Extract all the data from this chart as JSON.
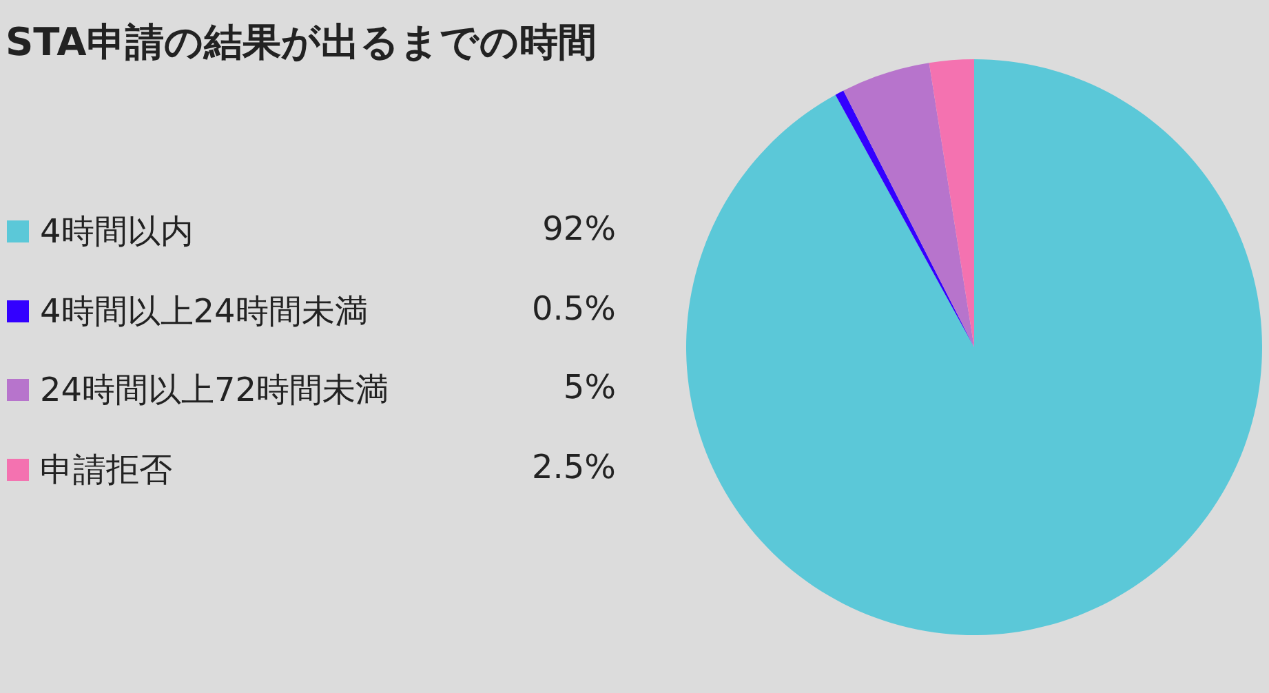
{
  "chart_data": {
    "type": "pie",
    "title": "STA申請の結果が出るまでの時間",
    "categories": [
      "4時間以内",
      "4時間以上24時間未満",
      "24時間以上72時間未満",
      "申請拒否"
    ],
    "values": [
      92,
      0.5,
      5,
      2.5
    ],
    "legend": "left",
    "value_labels": [
      "92%",
      "0.5%",
      "5%",
      "2.5%"
    ],
    "colors": [
      "#5bc8d8",
      "#3300ff",
      "#b774cc",
      "#f472b0"
    ]
  }
}
